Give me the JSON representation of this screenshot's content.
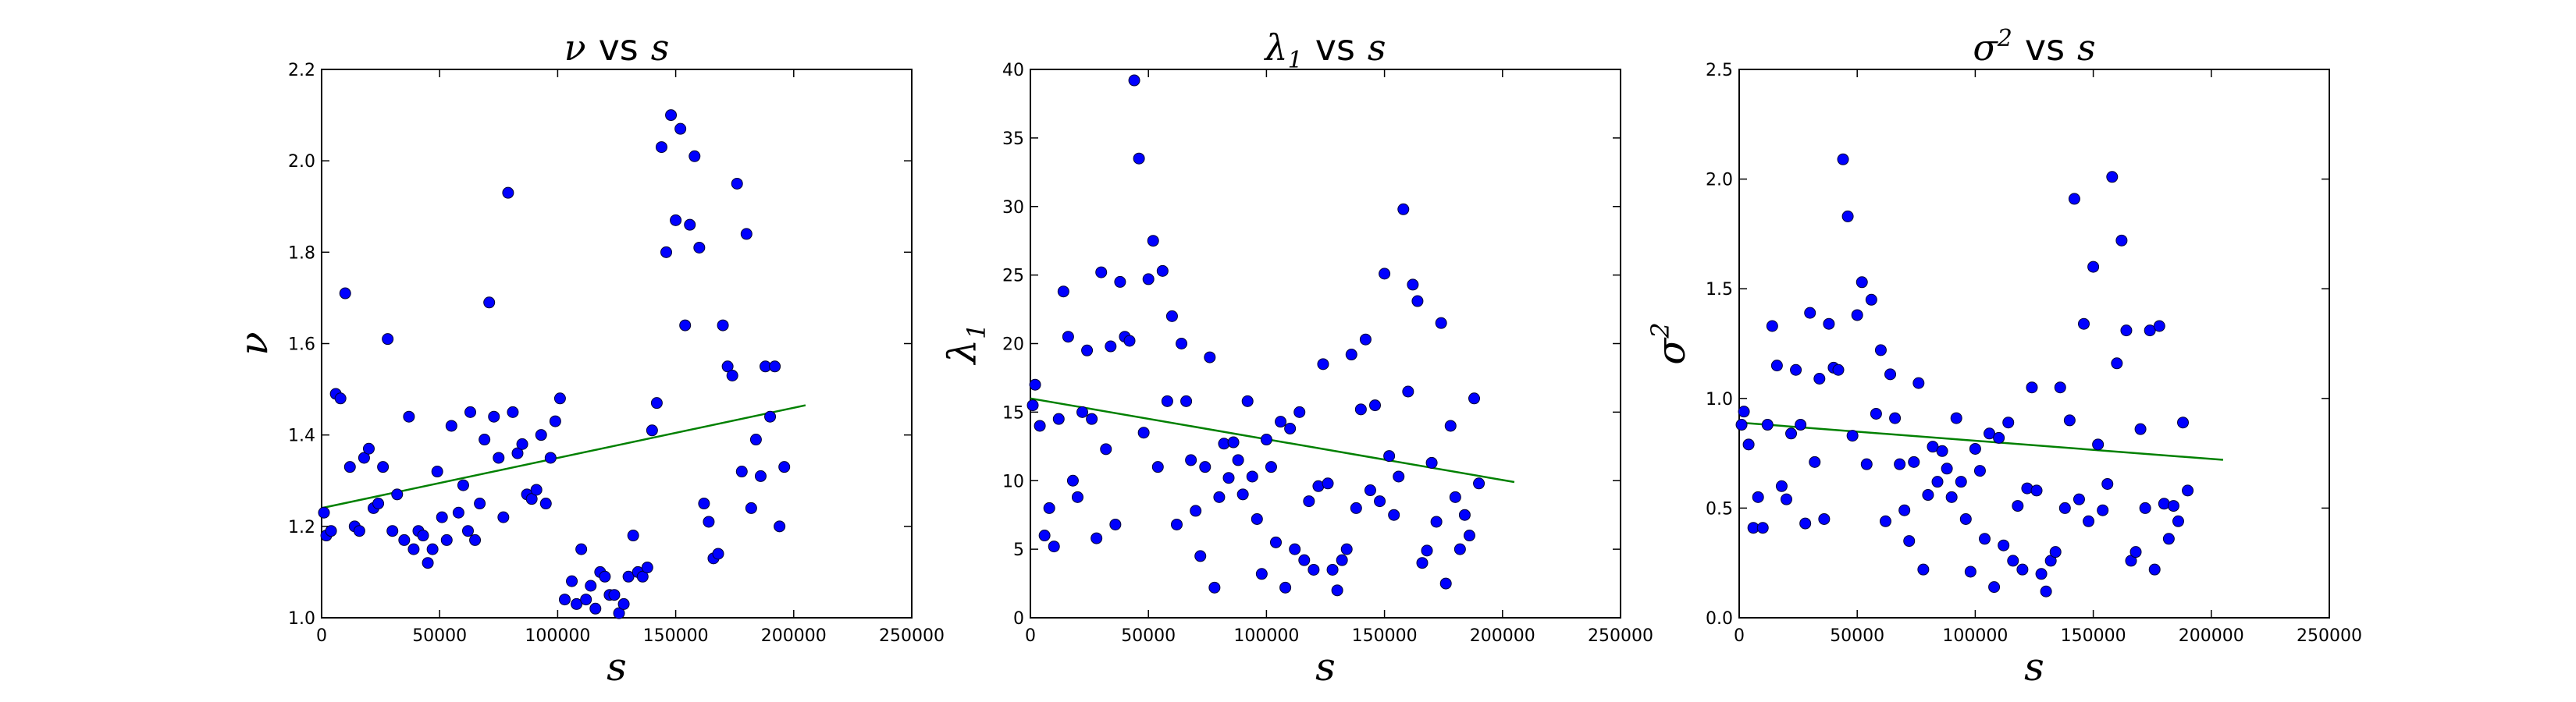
{
  "chart_data": [
    {
      "type": "scatter",
      "title_symbol": "ν",
      "title_vs": "vs",
      "title_var": "s",
      "xlabel": "s",
      "ylabel": "ν",
      "xlim": [
        0,
        250000
      ],
      "ylim": [
        1.0,
        2.2
      ],
      "xticks": [
        0,
        50000,
        100000,
        150000,
        200000,
        250000
      ],
      "xtick_labels": [
        "0",
        "50000",
        "100000",
        "150000",
        "200000",
        "250000"
      ],
      "yticks": [
        1.0,
        1.2,
        1.4,
        1.6,
        1.8,
        2.0,
        2.2
      ],
      "ytick_labels": [
        "1.0",
        "1.2",
        "1.4",
        "1.6",
        "1.8",
        "2.0",
        "2.2"
      ],
      "grid": false,
      "marker_color": "#0000ff",
      "fit_color": "#008000",
      "fit_line": {
        "x": [
          0,
          205000
        ],
        "y": [
          1.24,
          1.465
        ]
      },
      "points": [
        [
          1000,
          1.23
        ],
        [
          2000,
          1.18
        ],
        [
          4000,
          1.19
        ],
        [
          6000,
          1.49
        ],
        [
          8000,
          1.48
        ],
        [
          10000,
          1.71
        ],
        [
          12000,
          1.33
        ],
        [
          14000,
          1.2
        ],
        [
          16000,
          1.19
        ],
        [
          18000,
          1.35
        ],
        [
          20000,
          1.37
        ],
        [
          22000,
          1.24
        ],
        [
          24000,
          1.25
        ],
        [
          26000,
          1.33
        ],
        [
          28000,
          1.61
        ],
        [
          30000,
          1.19
        ],
        [
          32000,
          1.27
        ],
        [
          35000,
          1.17
        ],
        [
          37000,
          1.44
        ],
        [
          39000,
          1.15
        ],
        [
          41000,
          1.19
        ],
        [
          43000,
          1.18
        ],
        [
          45000,
          1.12
        ],
        [
          47000,
          1.15
        ],
        [
          49000,
          1.32
        ],
        [
          51000,
          1.22
        ],
        [
          53000,
          1.17
        ],
        [
          55000,
          1.42
        ],
        [
          58000,
          1.23
        ],
        [
          60000,
          1.29
        ],
        [
          62000,
          1.19
        ],
        [
          63000,
          1.45
        ],
        [
          65000,
          1.17
        ],
        [
          67000,
          1.25
        ],
        [
          69000,
          1.39
        ],
        [
          71000,
          1.69
        ],
        [
          73000,
          1.44
        ],
        [
          75000,
          1.35
        ],
        [
          77000,
          1.22
        ],
        [
          79000,
          1.93
        ],
        [
          81000,
          1.45
        ],
        [
          83000,
          1.36
        ],
        [
          85000,
          1.38
        ],
        [
          87000,
          1.27
        ],
        [
          89000,
          1.26
        ],
        [
          91000,
          1.28
        ],
        [
          93000,
          1.4
        ],
        [
          95000,
          1.25
        ],
        [
          97000,
          1.35
        ],
        [
          99000,
          1.43
        ],
        [
          101000,
          1.48
        ],
        [
          103000,
          1.04
        ],
        [
          106000,
          1.08
        ],
        [
          108000,
          1.03
        ],
        [
          110000,
          1.15
        ],
        [
          112000,
          1.04
        ],
        [
          114000,
          1.07
        ],
        [
          116000,
          1.02
        ],
        [
          118000,
          1.1
        ],
        [
          120000,
          1.09
        ],
        [
          122000,
          1.05
        ],
        [
          124000,
          1.05
        ],
        [
          126000,
          1.01
        ],
        [
          128000,
          1.03
        ],
        [
          130000,
          1.09
        ],
        [
          132000,
          1.18
        ],
        [
          134000,
          1.1
        ],
        [
          136000,
          1.09
        ],
        [
          138000,
          1.11
        ],
        [
          140000,
          1.41
        ],
        [
          142000,
          1.47
        ],
        [
          144000,
          2.03
        ],
        [
          146000,
          1.8
        ],
        [
          148000,
          2.1
        ],
        [
          150000,
          1.87
        ],
        [
          152000,
          2.07
        ],
        [
          154000,
          1.64
        ],
        [
          156000,
          1.86
        ],
        [
          158000,
          2.01
        ],
        [
          160000,
          1.81
        ],
        [
          162000,
          1.25
        ],
        [
          164000,
          1.21
        ],
        [
          166000,
          1.13
        ],
        [
          168000,
          1.14
        ],
        [
          170000,
          1.64
        ],
        [
          172000,
          1.55
        ],
        [
          174000,
          1.53
        ],
        [
          176000,
          1.95
        ],
        [
          178000,
          1.32
        ],
        [
          180000,
          1.84
        ],
        [
          182000,
          1.24
        ],
        [
          184000,
          1.39
        ],
        [
          186000,
          1.31
        ],
        [
          188000,
          1.55
        ],
        [
          190000,
          1.44
        ],
        [
          192000,
          1.55
        ],
        [
          194000,
          1.2
        ],
        [
          196000,
          1.33
        ]
      ]
    },
    {
      "type": "scatter",
      "title_symbol": "λ",
      "title_sub": "1",
      "title_vs": "vs",
      "title_var": "s",
      "xlabel": "s",
      "ylabel": "λ",
      "ylabel_sub": "1",
      "xlim": [
        0,
        250000
      ],
      "ylim": [
        0,
        40
      ],
      "xticks": [
        0,
        50000,
        100000,
        150000,
        200000,
        250000
      ],
      "xtick_labels": [
        "0",
        "50000",
        "100000",
        "150000",
        "200000",
        "250000"
      ],
      "yticks": [
        0,
        5,
        10,
        15,
        20,
        25,
        30,
        35,
        40
      ],
      "ytick_labels": [
        "0",
        "5",
        "10",
        "15",
        "20",
        "25",
        "30",
        "35",
        "40"
      ],
      "grid": false,
      "marker_color": "#0000ff",
      "fit_color": "#008000",
      "fit_line": {
        "x": [
          0,
          205000
        ],
        "y": [
          16.0,
          9.9
        ]
      },
      "points": [
        [
          1000,
          15.5
        ],
        [
          2000,
          17.0
        ],
        [
          4000,
          14.0
        ],
        [
          6000,
          6.0
        ],
        [
          8000,
          8.0
        ],
        [
          10000,
          5.2
        ],
        [
          12000,
          14.5
        ],
        [
          14000,
          23.8
        ],
        [
          16000,
          20.5
        ],
        [
          18000,
          10.0
        ],
        [
          20000,
          8.8
        ],
        [
          22000,
          15.0
        ],
        [
          24000,
          19.5
        ],
        [
          26000,
          14.5
        ],
        [
          28000,
          5.8
        ],
        [
          30000,
          25.2
        ],
        [
          32000,
          12.3
        ],
        [
          34000,
          19.8
        ],
        [
          36000,
          6.8
        ],
        [
          38000,
          24.5
        ],
        [
          40000,
          20.5
        ],
        [
          42000,
          20.2
        ],
        [
          44000,
          39.2
        ],
        [
          46000,
          33.5
        ],
        [
          48000,
          13.5
        ],
        [
          50000,
          24.7
        ],
        [
          52000,
          27.5
        ],
        [
          54000,
          11.0
        ],
        [
          56000,
          25.3
        ],
        [
          58000,
          15.8
        ],
        [
          60000,
          22.0
        ],
        [
          62000,
          6.8
        ],
        [
          64000,
          20.0
        ],
        [
          66000,
          15.8
        ],
        [
          68000,
          11.5
        ],
        [
          70000,
          7.8
        ],
        [
          72000,
          4.5
        ],
        [
          74000,
          11.0
        ],
        [
          76000,
          19.0
        ],
        [
          78000,
          2.2
        ],
        [
          80000,
          8.8
        ],
        [
          82000,
          12.7
        ],
        [
          84000,
          10.2
        ],
        [
          86000,
          12.8
        ],
        [
          88000,
          11.5
        ],
        [
          90000,
          9.0
        ],
        [
          92000,
          15.8
        ],
        [
          94000,
          10.3
        ],
        [
          96000,
          7.2
        ],
        [
          98000,
          3.2
        ],
        [
          100000,
          13.0
        ],
        [
          102000,
          11.0
        ],
        [
          104000,
          5.5
        ],
        [
          106000,
          14.3
        ],
        [
          108000,
          2.2
        ],
        [
          110000,
          13.8
        ],
        [
          112000,
          5.0
        ],
        [
          114000,
          15.0
        ],
        [
          116000,
          4.2
        ],
        [
          118000,
          8.5
        ],
        [
          120000,
          3.5
        ],
        [
          122000,
          9.6
        ],
        [
          124000,
          18.5
        ],
        [
          126000,
          9.8
        ],
        [
          128000,
          3.5
        ],
        [
          130000,
          2.0
        ],
        [
          132000,
          4.2
        ],
        [
          134000,
          5.0
        ],
        [
          136000,
          19.2
        ],
        [
          138000,
          8.0
        ],
        [
          140000,
          15.2
        ],
        [
          142000,
          20.3
        ],
        [
          144000,
          9.3
        ],
        [
          146000,
          15.5
        ],
        [
          148000,
          8.5
        ],
        [
          150000,
          25.1
        ],
        [
          152000,
          11.8
        ],
        [
          154000,
          7.5
        ],
        [
          156000,
          10.3
        ],
        [
          158000,
          29.8
        ],
        [
          160000,
          16.5
        ],
        [
          162000,
          24.3
        ],
        [
          164000,
          23.1
        ],
        [
          166000,
          4.0
        ],
        [
          168000,
          4.9
        ],
        [
          170000,
          11.3
        ],
        [
          172000,
          7.0
        ],
        [
          174000,
          21.5
        ],
        [
          176000,
          2.5
        ],
        [
          178000,
          14.0
        ],
        [
          180000,
          8.8
        ],
        [
          182000,
          5.0
        ],
        [
          184000,
          7.5
        ],
        [
          186000,
          6.0
        ],
        [
          188000,
          16.0
        ],
        [
          190000,
          9.8
        ]
      ]
    },
    {
      "type": "scatter",
      "title_symbol": "σ",
      "title_sup": "2",
      "title_vs": "vs",
      "title_var": "s",
      "xlabel": "s",
      "ylabel": "σ",
      "ylabel_sup": "2",
      "xlim": [
        0,
        250000
      ],
      "ylim": [
        0.0,
        2.5
      ],
      "xticks": [
        0,
        50000,
        100000,
        150000,
        200000,
        250000
      ],
      "xtick_labels": [
        "0",
        "50000",
        "100000",
        "150000",
        "200000",
        "250000"
      ],
      "yticks": [
        0.0,
        0.5,
        1.0,
        1.5,
        2.0,
        2.5
      ],
      "ytick_labels": [
        "0.0",
        "0.5",
        "1.0",
        "1.5",
        "2.0",
        "2.5"
      ],
      "grid": false,
      "marker_color": "#0000ff",
      "fit_color": "#008000",
      "fit_line": {
        "x": [
          0,
          205000
        ],
        "y": [
          0.89,
          0.72
        ]
      },
      "points": [
        [
          1000,
          0.88
        ],
        [
          2000,
          0.94
        ],
        [
          4000,
          0.79
        ],
        [
          6000,
          0.41
        ],
        [
          8000,
          0.55
        ],
        [
          10000,
          0.41
        ],
        [
          12000,
          0.88
        ],
        [
          14000,
          1.33
        ],
        [
          16000,
          1.15
        ],
        [
          18000,
          0.6
        ],
        [
          20000,
          0.54
        ],
        [
          22000,
          0.84
        ],
        [
          24000,
          1.13
        ],
        [
          26000,
          0.88
        ],
        [
          28000,
          0.43
        ],
        [
          30000,
          1.39
        ],
        [
          32000,
          0.71
        ],
        [
          34000,
          1.09
        ],
        [
          36000,
          0.45
        ],
        [
          38000,
          1.34
        ],
        [
          40000,
          1.14
        ],
        [
          42000,
          1.13
        ],
        [
          44000,
          2.09
        ],
        [
          46000,
          1.83
        ],
        [
          48000,
          0.83
        ],
        [
          50000,
          1.38
        ],
        [
          52000,
          1.53
        ],
        [
          54000,
          0.7
        ],
        [
          56000,
          1.45
        ],
        [
          58000,
          0.93
        ],
        [
          60000,
          1.22
        ],
        [
          62000,
          0.44
        ],
        [
          64000,
          1.11
        ],
        [
          66000,
          0.91
        ],
        [
          68000,
          0.7
        ],
        [
          70000,
          0.49
        ],
        [
          72000,
          0.35
        ],
        [
          74000,
          0.71
        ],
        [
          76000,
          1.07
        ],
        [
          78000,
          0.22
        ],
        [
          80000,
          0.56
        ],
        [
          82000,
          0.78
        ],
        [
          84000,
          0.62
        ],
        [
          86000,
          0.76
        ],
        [
          88000,
          0.68
        ],
        [
          90000,
          0.55
        ],
        [
          92000,
          0.91
        ],
        [
          94000,
          0.62
        ],
        [
          96000,
          0.45
        ],
        [
          98000,
          0.21
        ],
        [
          100000,
          0.77
        ],
        [
          102000,
          0.67
        ],
        [
          104000,
          0.36
        ],
        [
          106000,
          0.84
        ],
        [
          108000,
          0.14
        ],
        [
          110000,
          0.82
        ],
        [
          112000,
          0.33
        ],
        [
          114000,
          0.89
        ],
        [
          116000,
          0.26
        ],
        [
          118000,
          0.51
        ],
        [
          120000,
          0.22
        ],
        [
          122000,
          0.59
        ],
        [
          124000,
          1.05
        ],
        [
          126000,
          0.58
        ],
        [
          128000,
          0.2
        ],
        [
          130000,
          0.12
        ],
        [
          132000,
          0.26
        ],
        [
          134000,
          0.3
        ],
        [
          136000,
          1.05
        ],
        [
          138000,
          0.5
        ],
        [
          140000,
          0.9
        ],
        [
          142000,
          1.91
        ],
        [
          144000,
          0.54
        ],
        [
          146000,
          1.34
        ],
        [
          148000,
          0.44
        ],
        [
          150000,
          1.6
        ],
        [
          152000,
          0.79
        ],
        [
          154000,
          0.49
        ],
        [
          156000,
          0.61
        ],
        [
          158000,
          2.01
        ],
        [
          160000,
          1.16
        ],
        [
          162000,
          1.72
        ],
        [
          164000,
          1.31
        ],
        [
          166000,
          0.26
        ],
        [
          168000,
          0.3
        ],
        [
          170000,
          0.86
        ],
        [
          172000,
          0.5
        ],
        [
          174000,
          1.31
        ],
        [
          176000,
          0.22
        ],
        [
          178000,
          1.33
        ],
        [
          180000,
          0.52
        ],
        [
          182000,
          0.36
        ],
        [
          184000,
          0.51
        ],
        [
          186000,
          0.44
        ],
        [
          188000,
          0.89
        ],
        [
          190000,
          0.58
        ]
      ]
    }
  ]
}
